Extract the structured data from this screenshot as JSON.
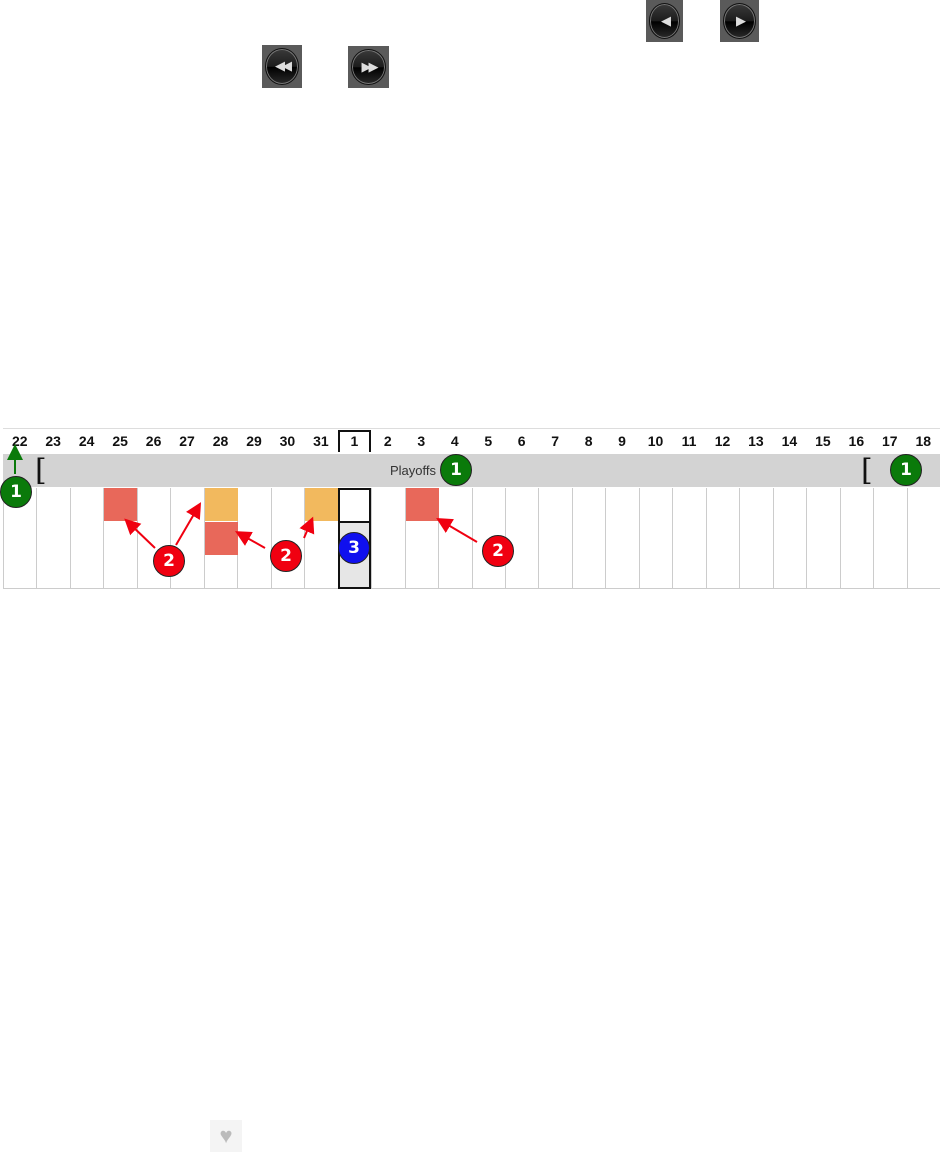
{
  "nav": {
    "prev_icon": "prev-icon",
    "next_icon": "next-icon",
    "rewind_icon": "rewind-icon",
    "fast_forward_icon": "fast-forward-icon",
    "prev_glyph": "◀",
    "next_glyph": "▶",
    "rewind_glyph": "◀◀",
    "fast_forward_glyph": "▶▶"
  },
  "timeline": {
    "days": [
      "22",
      "23",
      "24",
      "25",
      "26",
      "27",
      "28",
      "29",
      "30",
      "31",
      "1",
      "2",
      "3",
      "4",
      "5",
      "6",
      "7",
      "8",
      "9",
      "10",
      "11",
      "12",
      "13",
      "14",
      "15",
      "16",
      "17",
      "18"
    ],
    "selected_day": "1",
    "range_label": "Playoffs",
    "range_start_bracket": "[",
    "range_end_bracket": "[",
    "events": [
      {
        "day": "25",
        "row": 0,
        "color": "#e8685a"
      },
      {
        "day": "28",
        "row": 0,
        "color": "#f2b95e"
      },
      {
        "day": "28",
        "row": 1,
        "color": "#e8685a"
      },
      {
        "day": "31",
        "row": 0,
        "color": "#f2b95e"
      },
      {
        "day": "3",
        "row": 0,
        "color": "#e8685a"
      }
    ]
  },
  "annotations": {
    "badge_1": "1",
    "badge_2": "2",
    "badge_3": "3",
    "green": "#0a7a0a",
    "red": "#f00010",
    "blue": "#1010ee"
  },
  "footer": {
    "heart_glyph": "♥",
    "heart_icon": "heart-icon"
  }
}
